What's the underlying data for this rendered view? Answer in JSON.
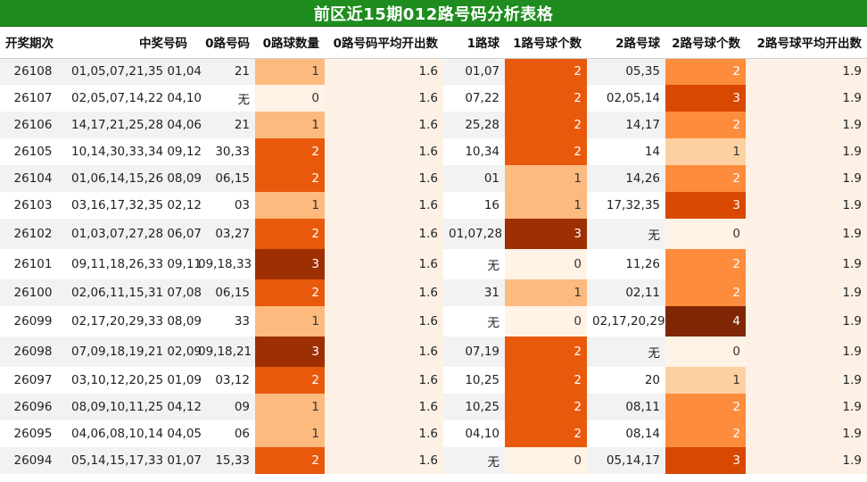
{
  "title": "前区近15期012路号码分析表格",
  "headers": [
    "开奖期次",
    "中奖号码",
    "0路号码",
    "0路球数量",
    "0路号码平均开出数",
    "1路球",
    "1路号球个数",
    "2路号球",
    "2路号球个数",
    "2路号球平均开出数"
  ],
  "rows": [
    {
      "period": "26108",
      "numbers": "01,05,07,21,35 01,04",
      "r0": "21",
      "c0": "1",
      "avg0": "1.6",
      "r1": "01,07",
      "c1": "2",
      "r2": "05,35",
      "c2": "2",
      "avg2": "1.9"
    },
    {
      "period": "26107",
      "numbers": "02,05,07,14,22 04,10",
      "r0": "无",
      "c0": "0",
      "avg0": "1.6",
      "r1": "07,22",
      "c1": "2",
      "r2": "02,05,14",
      "c2": "3",
      "avg2": "1.9"
    },
    {
      "period": "26106",
      "numbers": "14,17,21,25,28 04,06",
      "r0": "21",
      "c0": "1",
      "avg0": "1.6",
      "r1": "25,28",
      "c1": "2",
      "r2": "14,17",
      "c2": "2",
      "avg2": "1.9"
    },
    {
      "period": "26105",
      "numbers": "10,14,30,33,34 09,12",
      "r0": "30,33",
      "c0": "2",
      "avg0": "1.6",
      "r1": "10,34",
      "c1": "2",
      "r2": "14",
      "c2": "1",
      "avg2": "1.9"
    },
    {
      "period": "26104",
      "numbers": "01,06,14,15,26 08,09",
      "r0": "06,15",
      "c0": "2",
      "avg0": "1.6",
      "r1": "01",
      "c1": "1",
      "r2": "14,26",
      "c2": "2",
      "avg2": "1.9"
    },
    {
      "period": "26103",
      "numbers": "03,16,17,32,35 02,12",
      "r0": "03",
      "c0": "1",
      "avg0": "1.6",
      "r1": "16",
      "c1": "1",
      "r2": "17,32,35",
      "c2": "3",
      "avg2": "1.9"
    },
    {
      "period": "26102",
      "numbers": "01,03,07,27,28 06,07",
      "r0": "03,27",
      "c0": "2",
      "avg0": "1.6",
      "r1": "01,07,28",
      "c1": "3",
      "r2": "无",
      "c2": "0",
      "avg2": "1.9"
    },
    {
      "period": "26101",
      "numbers": "09,11,18,26,33 09,11",
      "r0": "09,18,33",
      "c0": "3",
      "avg0": "1.6",
      "r1": "无",
      "c1": "0",
      "r2": "11,26",
      "c2": "2",
      "avg2": "1.9"
    },
    {
      "period": "26100",
      "numbers": "02,06,11,15,31 07,08",
      "r0": "06,15",
      "c0": "2",
      "avg0": "1.6",
      "r1": "31",
      "c1": "1",
      "r2": "02,11",
      "c2": "2",
      "avg2": "1.9"
    },
    {
      "period": "26099",
      "numbers": "02,17,20,29,33 08,09",
      "r0": "33",
      "c0": "1",
      "avg0": "1.6",
      "r1": "无",
      "c1": "0",
      "r2": "02,17,20,29",
      "c2": "4",
      "avg2": "1.9"
    },
    {
      "period": "26098",
      "numbers": "07,09,18,19,21 02,09",
      "r0": "09,18,21",
      "c0": "3",
      "avg0": "1.6",
      "r1": "07,19",
      "c1": "2",
      "r2": "无",
      "c2": "0",
      "avg2": "1.9"
    },
    {
      "period": "26097",
      "numbers": "03,10,12,20,25 01,09",
      "r0": "03,12",
      "c0": "2",
      "avg0": "1.6",
      "r1": "10,25",
      "c1": "2",
      "r2": "20",
      "c2": "1",
      "avg2": "1.9"
    },
    {
      "period": "26096",
      "numbers": "08,09,10,11,25 04,12",
      "r0": "09",
      "c0": "1",
      "avg0": "1.6",
      "r1": "10,25",
      "c1": "2",
      "r2": "08,11",
      "c2": "2",
      "avg2": "1.9"
    },
    {
      "period": "26095",
      "numbers": "04,06,08,10,14 04,05",
      "r0": "06",
      "c0": "1",
      "avg0": "1.6",
      "r1": "04,10",
      "c1": "2",
      "r2": "08,14",
      "c2": "2",
      "avg2": "1.9"
    },
    {
      "period": "26094",
      "numbers": "05,14,15,17,33 01,07",
      "r0": "15,33",
      "c0": "2",
      "avg0": "1.6",
      "r1": "无",
      "c1": "0",
      "r2": "05,14,17",
      "c2": "3",
      "avg2": "1.9"
    }
  ]
}
